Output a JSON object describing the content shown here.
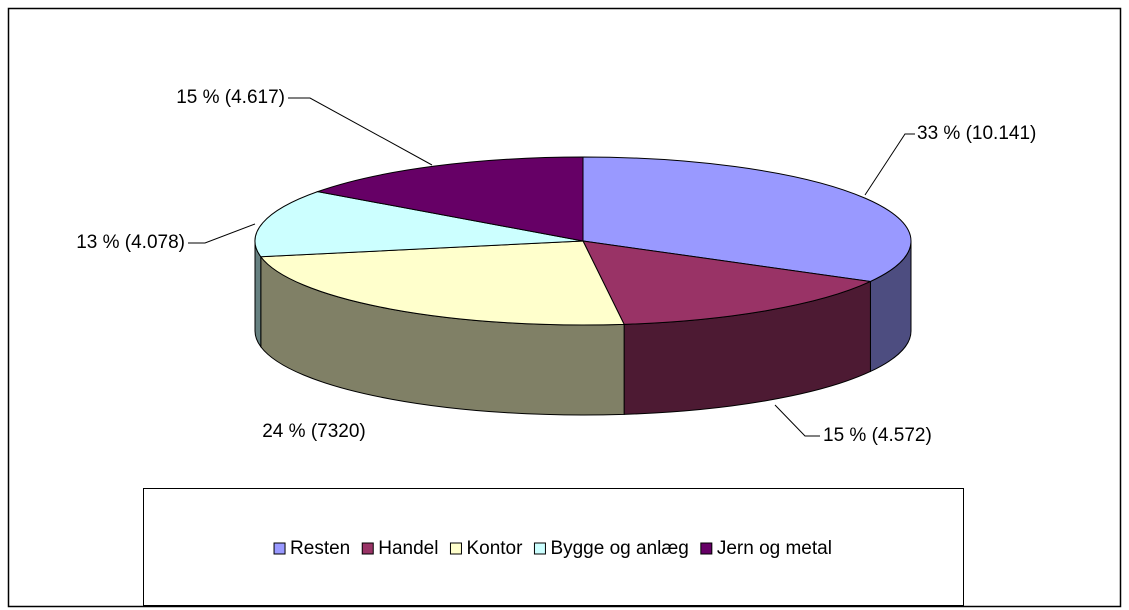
{
  "chart_data": {
    "type": "pie",
    "categories": [
      "Resten",
      "Handel",
      "Kontor",
      "Bygge og anlæg",
      "Jern og metal"
    ],
    "values": [
      33,
      15,
      24,
      13,
      15
    ],
    "value_labels": [
      "33 % (10.141)",
      "15 % (4.572)",
      "24 % (7320)",
      "13 % (4.078)",
      "15 % (4.617)"
    ],
    "colors": [
      "#9999ff",
      "#993366",
      "#ffffcc",
      "#ccffff",
      "#660066"
    ],
    "legend": "bottom"
  }
}
